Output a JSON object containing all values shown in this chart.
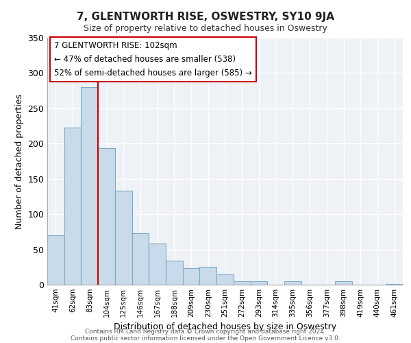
{
  "title": "7, GLENTWORTH RISE, OSWESTRY, SY10 9JA",
  "subtitle": "Size of property relative to detached houses in Oswestry",
  "xlabel": "Distribution of detached houses by size in Oswestry",
  "ylabel": "Number of detached properties",
  "categories": [
    "41sqm",
    "62sqm",
    "83sqm",
    "104sqm",
    "125sqm",
    "146sqm",
    "167sqm",
    "188sqm",
    "209sqm",
    "230sqm",
    "251sqm",
    "272sqm",
    "293sqm",
    "314sqm",
    "335sqm",
    "356sqm",
    "377sqm",
    "398sqm",
    "419sqm",
    "440sqm",
    "461sqm"
  ],
  "values": [
    70,
    223,
    280,
    193,
    133,
    73,
    58,
    34,
    23,
    25,
    15,
    5,
    5,
    0,
    5,
    0,
    0,
    5,
    0,
    0,
    1
  ],
  "bar_color": "#c9daea",
  "bar_edge_color": "#7bacc4",
  "vline_color": "#cc0000",
  "annotation_title": "7 GLENTWORTH RISE: 102sqm",
  "annotation_line1": "← 47% of detached houses are smaller (538)",
  "annotation_line2": "52% of semi-detached houses are larger (585) →",
  "ylim": [
    0,
    350
  ],
  "yticks": [
    0,
    50,
    100,
    150,
    200,
    250,
    300,
    350
  ],
  "footer_line1": "Contains HM Land Registry data © Crown copyright and database right 2024.",
  "footer_line2": "Contains public sector information licensed under the Open Government Licence v3.0.",
  "background_color": "#ffffff",
  "plot_bg_color": "#eef2f7"
}
